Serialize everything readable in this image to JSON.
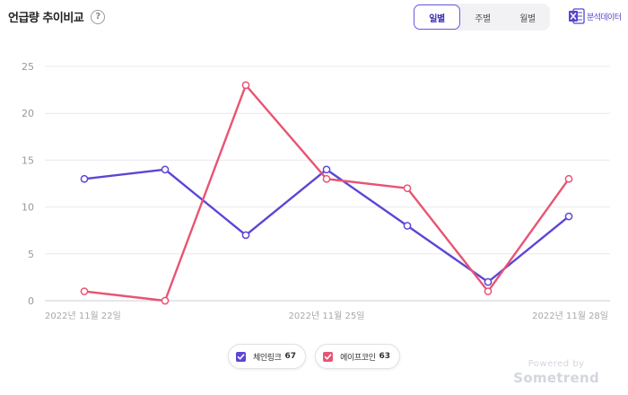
{
  "header": {
    "title": "언급량 추이비교",
    "help_symbol": "?",
    "period_tabs": [
      {
        "label": "일별",
        "active": true
      },
      {
        "label": "주별",
        "active": false
      },
      {
        "label": "월별",
        "active": false
      }
    ],
    "export_label": "분석데이터",
    "export_icon": "excel-icon",
    "accent_color": "#6a5ae0"
  },
  "chart_data": {
    "type": "line",
    "x": [
      "2022-11-22",
      "2022-11-23",
      "2022-11-24",
      "2022-11-25",
      "2022-11-26",
      "2022-11-27",
      "2022-11-28"
    ],
    "x_tick_labels": [
      "2022년 11월 22일",
      "",
      "",
      "2022년 11월 25일",
      "",
      "",
      "2022년 11월 28일"
    ],
    "y_ticks": [
      0,
      5,
      10,
      15,
      20,
      25
    ],
    "ylim": [
      0,
      25
    ],
    "grid": true,
    "series": [
      {
        "name": "체인링크",
        "total": 67,
        "color": "#5b46d6",
        "values": [
          13,
          14,
          7,
          14,
          8,
          2,
          9
        ]
      },
      {
        "name": "에이프코인",
        "total": 63,
        "color": "#e85473",
        "values": [
          1,
          0,
          23,
          13,
          12,
          1,
          13
        ]
      }
    ]
  },
  "legend": {
    "items": [
      {
        "name": "체인링크",
        "count": "67",
        "color": "#5b46d6"
      },
      {
        "name": "에이프코인",
        "count": "63",
        "color": "#e85473"
      }
    ]
  },
  "watermark": {
    "top": "Powered by",
    "brand": "Sometrend"
  }
}
